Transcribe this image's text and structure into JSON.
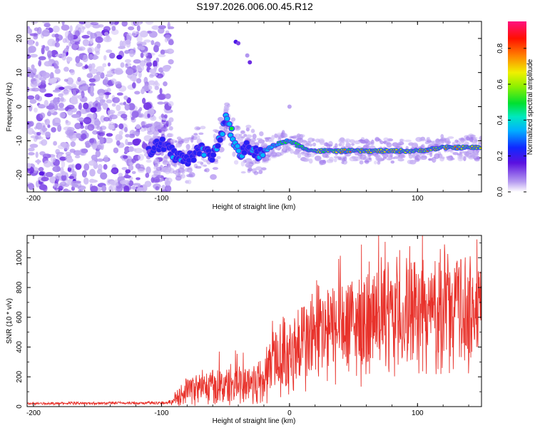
{
  "title": "S197.2026.006.00.45.R12",
  "chart_data": [
    {
      "type": "heatmap",
      "title": "S197.2026.006.00.45.R12",
      "xlabel": "Height of straight line (km)",
      "ylabel": "Frequency (Hz)",
      "xlim": [
        -205,
        150
      ],
      "ylim": [
        -25,
        25
      ],
      "xticks": [
        -200,
        -100,
        0,
        100
      ],
      "yticks": [
        -20,
        -10,
        0,
        10,
        20
      ],
      "x_tick_labels": [
        "-200",
        "-100",
        "0",
        "100"
      ],
      "y_tick_labels": [
        "-20",
        "-10",
        "0",
        "10",
        "20"
      ],
      "colorbar": {
        "label": "Normalized spectral amplitude",
        "range": [
          0.0,
          0.95
        ],
        "ticks": [
          0.0,
          0.2,
          0.4,
          0.6,
          0.8
        ],
        "tick_labels": [
          "0.0",
          "0.2",
          "0.4",
          "0.6",
          "0.8"
        ]
      },
      "ridge": {
        "x": [
          -110,
          -100,
          -90,
          -80,
          -70,
          -60,
          -55,
          -50,
          -45,
          -40,
          -35,
          -30,
          -25,
          -20,
          -10,
          0,
          10,
          20,
          40,
          60,
          80,
          100,
          120,
          150
        ],
        "freq": [
          -13,
          -11,
          -14,
          -16,
          -12,
          -15,
          -9,
          -4,
          -8,
          -14,
          -12,
          -13,
          -14,
          -13,
          -11,
          -10,
          -12,
          -13,
          -13,
          -13,
          -13,
          -13,
          -12,
          -12
        ],
        "amplitude": [
          0.25,
          0.3,
          0.35,
          0.3,
          0.3,
          0.35,
          0.4,
          0.35,
          0.5,
          0.4,
          0.3,
          0.3,
          0.35,
          0.4,
          0.5,
          0.55,
          0.65,
          0.8,
          0.85,
          0.9,
          0.9,
          0.85,
          0.9,
          0.95
        ]
      }
    },
    {
      "type": "line",
      "xlabel": "Height of straight line (km)",
      "ylabel": "SNR (10 * v/v)",
      "xlim": [
        -205,
        150
      ],
      "ylim": [
        0,
        1150
      ],
      "xticks": [
        -200,
        -100,
        0,
        100
      ],
      "yticks": [
        0,
        200,
        400,
        600,
        800,
        1000
      ],
      "x_tick_labels": [
        "-200",
        "-100",
        "0",
        "100"
      ],
      "y_tick_labels": [
        "0",
        "200",
        "400",
        "600",
        "800",
        "1000"
      ],
      "series": [
        {
          "name": "SNR",
          "color": "#e8312a",
          "envelope_x": [
            -205,
            -95,
            -90,
            -85,
            -80,
            -70,
            -60,
            -50,
            -40,
            -30,
            -20,
            -15,
            -10,
            0,
            10,
            20,
            40,
            60,
            80,
            100,
            120,
            130,
            140,
            150
          ],
          "envelope_mean": [
            20,
            25,
            40,
            80,
            120,
            120,
            130,
            140,
            150,
            160,
            170,
            290,
            310,
            360,
            420,
            470,
            520,
            560,
            590,
            620,
            640,
            650,
            640,
            640
          ],
          "envelope_amp": [
            8,
            10,
            30,
            70,
            90,
            110,
            120,
            130,
            140,
            150,
            180,
            220,
            260,
            280,
            320,
            340,
            350,
            360,
            370,
            380,
            380,
            400,
            380,
            380
          ]
        }
      ]
    }
  ]
}
